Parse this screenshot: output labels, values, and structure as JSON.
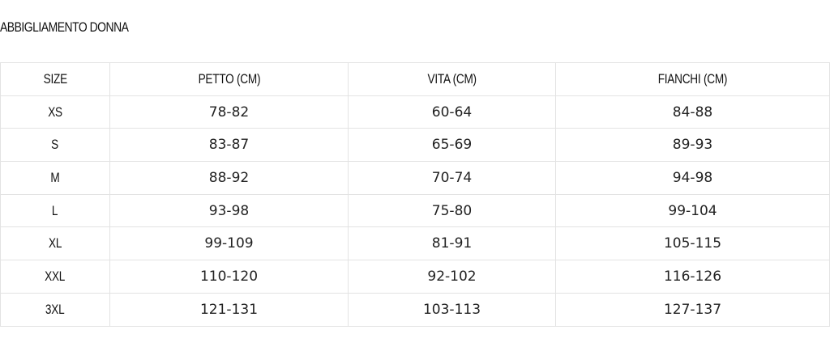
{
  "title": "ABBIGLIAMENTO DONNA",
  "table": {
    "headers": [
      "SIZE",
      "PETTO (CM)",
      "VITA (CM)",
      "FIANCHI (CM)"
    ],
    "rows": [
      [
        "XS",
        "78-82",
        "60-64",
        "84-88"
      ],
      [
        "S",
        "83-87",
        "65-69",
        "89-93"
      ],
      [
        "M",
        "88-92",
        "70-74",
        "94-98"
      ],
      [
        "L",
        "93-98",
        "75-80",
        "99-104"
      ],
      [
        "XL",
        "99-109",
        "81-91",
        "105-115"
      ],
      [
        "XXL",
        "110-120",
        "92-102",
        "116-126"
      ],
      [
        "3XL",
        "121-131",
        "103-113",
        "127-137"
      ]
    ]
  }
}
